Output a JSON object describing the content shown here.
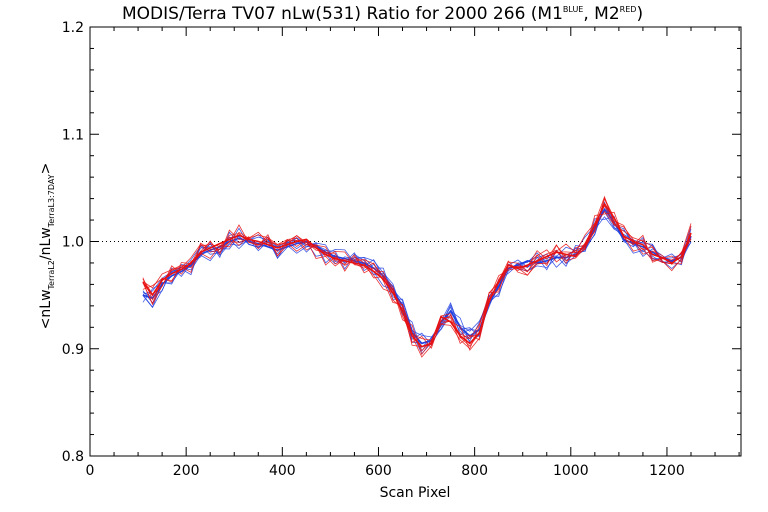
{
  "title": {
    "main": "MODIS/Terra TV07 nLw(531) Ratio for 2000 266 (M1",
    "sup1": "BLUE",
    "mid": ", M2",
    "sup2": "RED",
    "end": ")"
  },
  "colors": {
    "M1": "#2040e0",
    "M2": "#e81010",
    "reference": "#000000"
  },
  "chart_data": {
    "type": "line",
    "title": "MODIS/Terra TV07 nLw(531) Ratio for 2000 266 (M1 BLUE, M2 RED)",
    "xlabel": "Scan Pixel",
    "ylabel": {
      "open": "<nLw",
      "sub1": "TerraL2",
      "mid": "/nLw",
      "sub2": "TerraL3:7DAY",
      "close": ">"
    },
    "xlim": [
      0,
      1354
    ],
    "ylim": [
      0.8,
      1.2
    ],
    "xticks": [
      0,
      200,
      400,
      600,
      800,
      1000,
      1200
    ],
    "yticks": [
      0.8,
      0.9,
      1.0,
      1.1,
      1.2
    ],
    "ytick_labels": [
      "0.8",
      "0.9",
      "1.0",
      "1.1",
      "1.2"
    ],
    "reference_line": 1.0,
    "grid": false,
    "series": [
      {
        "group": "M1",
        "x": [
          110,
          130,
          150,
          170,
          190,
          210,
          230,
          250,
          270,
          290,
          310,
          330,
          350,
          370,
          390,
          410,
          430,
          450,
          470,
          490,
          510,
          530,
          550,
          570,
          590,
          610,
          630,
          650,
          670,
          690,
          710,
          730,
          750,
          770,
          790,
          810,
          830,
          850,
          870,
          890,
          910,
          930,
          950,
          970,
          990,
          1010,
          1030,
          1050,
          1070,
          1090,
          1110,
          1130,
          1150,
          1170,
          1190,
          1210,
          1230,
          1250
        ],
        "y": [
          0.95,
          0.947,
          0.96,
          0.968,
          0.972,
          0.978,
          0.988,
          0.992,
          0.995,
          1.0,
          1.003,
          1.0,
          0.998,
          0.995,
          0.992,
          0.995,
          0.998,
          1.0,
          0.996,
          0.99,
          0.986,
          0.984,
          0.982,
          0.98,
          0.975,
          0.968,
          0.955,
          0.94,
          0.915,
          0.905,
          0.908,
          0.925,
          0.935,
          0.92,
          0.912,
          0.918,
          0.942,
          0.958,
          0.975,
          0.978,
          0.982,
          0.98,
          0.982,
          0.985,
          0.985,
          0.988,
          0.996,
          1.012,
          1.03,
          1.018,
          1.002,
          0.998,
          0.995,
          0.99,
          0.985,
          0.982,
          0.985,
          1.005
        ]
      },
      {
        "group": "M2",
        "x": [
          110,
          130,
          150,
          170,
          190,
          210,
          230,
          250,
          270,
          290,
          310,
          330,
          350,
          370,
          390,
          410,
          430,
          450,
          470,
          490,
          510,
          530,
          550,
          570,
          590,
          610,
          630,
          650,
          670,
          690,
          710,
          730,
          750,
          770,
          790,
          810,
          830,
          850,
          870,
          890,
          910,
          930,
          950,
          970,
          990,
          1010,
          1030,
          1050,
          1070,
          1090,
          1110,
          1130,
          1150,
          1170,
          1190,
          1210,
          1230,
          1250
        ],
        "y": [
          0.962,
          0.95,
          0.964,
          0.97,
          0.974,
          0.98,
          0.99,
          0.994,
          0.998,
          1.002,
          1.006,
          1.002,
          1.0,
          0.997,
          0.994,
          0.997,
          1.0,
          1.002,
          0.994,
          0.988,
          0.984,
          0.982,
          0.98,
          0.978,
          0.972,
          0.965,
          0.952,
          0.935,
          0.912,
          0.902,
          0.905,
          0.93,
          0.925,
          0.912,
          0.905,
          0.915,
          0.945,
          0.962,
          0.978,
          0.975,
          0.978,
          0.982,
          0.986,
          0.99,
          0.988,
          0.986,
          0.998,
          1.015,
          1.035,
          1.022,
          1.005,
          1.0,
          0.997,
          0.988,
          0.985,
          0.98,
          0.986,
          1.008
        ]
      }
    ]
  }
}
